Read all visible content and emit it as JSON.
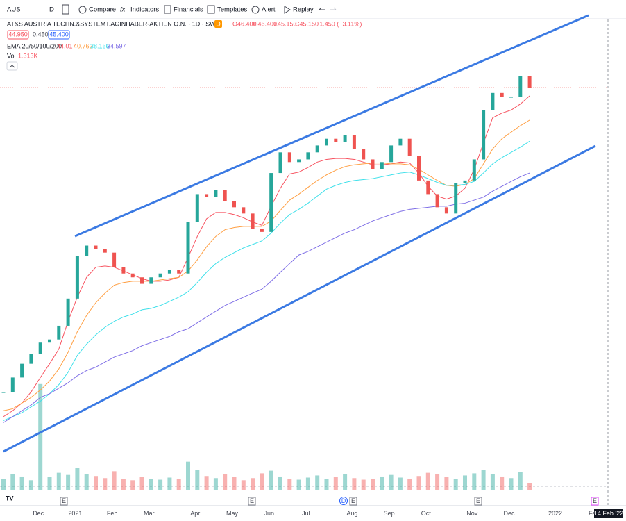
{
  "toolbar": {
    "symbol": "AUS",
    "interval": "D",
    "items": [
      "Compare",
      "Indicators",
      "Financials",
      "Templates",
      "Alert",
      "Replay"
    ]
  },
  "legend": {
    "title": "AT&S AUSTRIA TECHN.&SYSTEMT.AGINHABER-AKTIEN O.N. · 1D · SWB",
    "badge": "D",
    "ohlc": [
      "O46.400",
      "H46.400",
      "L45.150",
      "C45.150",
      "−1.450 (−3.11%)"
    ],
    "bid": "44.950",
    "spread": "0.450",
    "ask": "45.400",
    "ema_label": "EMA 20/50/100/200",
    "ema_values": [
      "44.017",
      "40.762",
      "38.166",
      "34.597"
    ],
    "vol_label": "Vol",
    "vol_value": "1.313K"
  },
  "events": [
    "E",
    "E",
    "D",
    "E",
    "E",
    "E"
  ],
  "crosshair_label": "14 Feb '22",
  "chart_data": {
    "type": "candlestick",
    "log": true,
    "ylim": [
      12.9,
      56.8
    ],
    "y2lim": [
      0,
      90
    ],
    "up_color": "#26a69a",
    "down_color": "#ef5350",
    "categories": [
      null,
      null,
      null,
      null,
      "Dec",
      null,
      null,
      null,
      "2021",
      null,
      null,
      null,
      "Feb",
      null,
      null,
      null,
      "Mar",
      null,
      null,
      null,
      null,
      "Apr",
      null,
      null,
      null,
      "May",
      null,
      null,
      null,
      "Jun",
      null,
      null,
      null,
      "Jul",
      null,
      null,
      null,
      null,
      "Aug",
      null,
      null,
      null,
      "Sep",
      null,
      null,
      null,
      "Oct",
      null,
      null,
      null,
      null,
      "Nov",
      null,
      null,
      null,
      "Dec",
      null,
      null,
      null,
      null,
      "2022",
      null,
      null,
      null,
      "Fe"
    ],
    "series": [
      {
        "color": "#26a69a",
        "values": [
          17.5,
          18.3,
          19.1,
          19.7,
          20.4,
          20.6,
          21.5,
          23.4,
          26.7,
          27.6,
          27.3,
          27.0,
          25.8,
          25.3,
          25.0,
          24.5,
          25.0,
          25.3,
          25.6,
          25.3,
          29.7,
          32.4,
          32.1,
          32.8,
          31.7,
          31.1,
          30.5,
          29.1,
          28.8,
          34.6,
          36.9,
          35.8,
          36.1,
          36.9,
          37.7,
          38.5,
          38.1,
          38.9,
          37.3,
          36.1,
          35.0,
          35.8,
          37.7,
          38.5,
          36.5,
          33.8,
          32.4,
          31.1,
          30.5,
          33.5,
          33.8,
          36.1,
          42.1,
          44.4,
          43.9,
          43.9,
          46.8,
          45.15,
          null,
          null,
          null,
          null,
          null,
          null,
          null
        ]
      },
      {
        "color": "#f7525f",
        "values": [
          16.2,
          16.5,
          16.9,
          17.5,
          18.3,
          19.1,
          20.0,
          21.8,
          23.5,
          25.0,
          25.8,
          25.9,
          25.8,
          25.5,
          25.2,
          24.9,
          24.7,
          24.7,
          24.8,
          25.0,
          26.6,
          28.4,
          30.0,
          30.6,
          30.6,
          30.4,
          30.1,
          29.7,
          29.4,
          31.2,
          33.0,
          34.5,
          34.7,
          35.2,
          35.8,
          36.1,
          36.2,
          36.2,
          36.1,
          35.8,
          35.5,
          35.5,
          35.6,
          35.8,
          35.7,
          34.6,
          33.2,
          32.2,
          31.9,
          32.2,
          33.0,
          35.0,
          38.0,
          41.1,
          41.7,
          42.1,
          42.9,
          44.0,
          null,
          null,
          null,
          null,
          null,
          null,
          null
        ]
      },
      {
        "color": "#ff9f43",
        "values": [
          16.5,
          16.6,
          16.9,
          17.2,
          17.6,
          18.1,
          18.8,
          19.8,
          21.1,
          22.2,
          23.1,
          23.8,
          24.4,
          24.6,
          24.7,
          24.7,
          24.7,
          24.8,
          24.9,
          25.0,
          25.5,
          26.4,
          27.5,
          28.4,
          29.0,
          29.2,
          29.3,
          29.3,
          29.3,
          29.8,
          30.8,
          31.8,
          32.4,
          33.1,
          33.8,
          34.4,
          34.9,
          35.3,
          35.5,
          35.6,
          35.7,
          35.7,
          35.6,
          35.6,
          35.5,
          35.0,
          34.4,
          33.8,
          33.3,
          33.2,
          33.4,
          34.0,
          35.6,
          37.3,
          38.5,
          39.3,
          40.1,
          40.8,
          null,
          null,
          null,
          null,
          null,
          null,
          null
        ]
      },
      {
        "color": "#3ee0ea",
        "values": [
          16.0,
          16.2,
          16.4,
          16.7,
          17.0,
          17.4,
          17.9,
          18.6,
          19.6,
          20.3,
          20.9,
          21.4,
          21.8,
          22.1,
          22.3,
          22.6,
          22.7,
          22.9,
          23.2,
          23.5,
          23.9,
          24.6,
          25.4,
          26.1,
          26.6,
          27.0,
          27.4,
          27.7,
          28.0,
          28.7,
          29.6,
          30.4,
          30.9,
          31.5,
          32.2,
          32.9,
          33.3,
          33.6,
          33.8,
          33.9,
          34.0,
          34.2,
          34.4,
          34.6,
          34.7,
          34.4,
          34.0,
          33.6,
          33.3,
          33.3,
          33.4,
          33.7,
          34.6,
          35.6,
          36.3,
          36.9,
          37.5,
          38.2,
          null,
          null,
          null,
          null,
          null,
          null,
          null
        ]
      },
      {
        "color": "#7e6ee6",
        "values": [
          15.9,
          16.2,
          16.5,
          16.8,
          17.2,
          17.4,
          17.7,
          18.0,
          18.4,
          18.7,
          18.9,
          19.2,
          19.5,
          19.7,
          19.9,
          20.2,
          20.4,
          20.6,
          20.8,
          21.1,
          21.3,
          21.7,
          22.1,
          22.5,
          22.9,
          23.2,
          23.5,
          23.8,
          24.1,
          24.7,
          25.4,
          26.1,
          26.8,
          27.1,
          27.5,
          27.9,
          28.3,
          28.7,
          29.0,
          29.4,
          29.8,
          30.1,
          30.4,
          30.7,
          30.9,
          31.0,
          31.1,
          31.2,
          31.2,
          31.4,
          31.5,
          31.8,
          32.1,
          32.7,
          33.2,
          33.7,
          34.2,
          34.6,
          null,
          null,
          null,
          null,
          null,
          null,
          null
        ]
      },
      {
        "name": "Vol",
        "axis": "y2",
        "values": [
          2.1,
          3.0,
          2.5,
          1.8,
          20,
          2.4,
          3.2,
          2.8,
          4.1,
          3.0,
          2.6,
          2.2,
          3.5,
          2.0,
          1.8,
          2.4,
          2.1,
          1.9,
          2.3,
          2.0,
          5.3,
          3.8,
          2.6,
          2.2,
          2.9,
          2.4,
          1.8,
          2.2,
          3.1,
          3.6,
          2.5,
          2.0,
          1.9,
          2.3,
          2.7,
          2.1,
          2.4,
          3.0,
          2.2,
          1.9,
          2.1,
          2.5,
          2.8,
          2.3,
          2.0,
          2.6,
          3.2,
          2.9,
          2.4,
          2.1,
          2.7,
          3.1,
          3.8,
          2.9,
          2.5,
          2.2,
          3.4,
          1.313,
          null,
          null,
          null,
          null,
          null,
          null,
          null
        ]
      }
    ]
  }
}
